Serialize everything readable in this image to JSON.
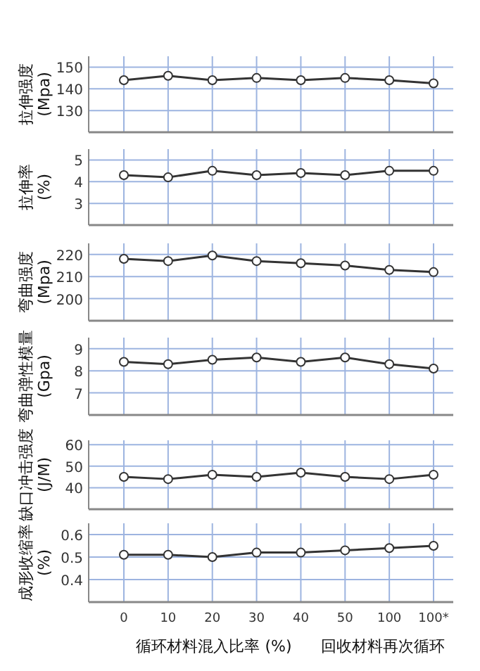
{
  "chart_data": [
    {
      "type": "line",
      "ylabel": "拉伸强度 (Mpa)",
      "categories": [
        null,
        null,
        null,
        null,
        null,
        null,
        null,
        null
      ],
      "values": [
        144,
        146,
        144,
        145,
        144,
        145,
        144,
        142.5
      ],
      "color": "#333333",
      "ylim": [
        120,
        155
      ],
      "yticks": [
        130,
        140,
        150
      ],
      "grid": true,
      "marker": "circle",
      "tick_labels": "y"
    },
    {
      "type": "line",
      "ylabel": "拉伸率 (%)",
      "categories": [
        null,
        null,
        null,
        null,
        null,
        null,
        null,
        null
      ],
      "values": [
        4.3,
        4.2,
        4.5,
        4.3,
        4.4,
        4.3,
        4.5,
        4.5
      ],
      "color": "#333333",
      "ylim": [
        2,
        5.5
      ],
      "yticks": [
        3,
        4,
        5
      ],
      "grid": true,
      "marker": "circle",
      "tick_labels": "y"
    },
    {
      "type": "line",
      "ylabel": "弯曲强度 (Mpa)",
      "categories": [
        null,
        null,
        null,
        null,
        null,
        null,
        null,
        null
      ],
      "values": [
        218,
        217,
        219.5,
        217,
        216,
        215,
        213,
        212
      ],
      "color": "#333333",
      "ylim": [
        190,
        225
      ],
      "yticks": [
        200,
        210,
        220
      ],
      "grid": true,
      "marker": "circle",
      "tick_labels": "y"
    },
    {
      "type": "line",
      "ylabel": "弯曲弹性模量 (Gpa)",
      "categories": [
        null,
        null,
        null,
        null,
        null,
        null,
        null,
        null
      ],
      "values": [
        8.4,
        8.3,
        8.5,
        8.6,
        8.4,
        8.6,
        8.3,
        8.1
      ],
      "color": "#333333",
      "ylim": [
        6,
        9.5
      ],
      "yticks": [
        7,
        8,
        9
      ],
      "grid": true,
      "marker": "circle",
      "tick_labels": "y"
    },
    {
      "type": "line",
      "ylabel": "缺口冲击强度 (J/M)",
      "categories": [
        null,
        null,
        null,
        null,
        null,
        null,
        null,
        null
      ],
      "values": [
        45,
        44,
        46,
        45,
        47,
        45,
        44,
        46
      ],
      "color": "#333333",
      "ylim": [
        30,
        62
      ],
      "yticks": [
        40,
        50,
        60
      ],
      "grid": true,
      "marker": "circle",
      "tick_labels": "y"
    },
    {
      "type": "line",
      "ylabel": "成形收缩率 (%)",
      "xlabel": "循环材料混入比率 (%)",
      "annotations": [
        "回收材料再次循环"
      ],
      "categories": [
        "0",
        "10",
        "20",
        "30",
        "40",
        "50",
        "100",
        "100*"
      ],
      "values": [
        0.51,
        0.51,
        0.5,
        0.52,
        0.52,
        0.53,
        0.54,
        0.55
      ],
      "color": "#333333",
      "ylim": [
        0.3,
        0.65
      ],
      "yticks": [
        0.4,
        0.5,
        0.6
      ],
      "grid": true,
      "marker": "circle"
    }
  ]
}
